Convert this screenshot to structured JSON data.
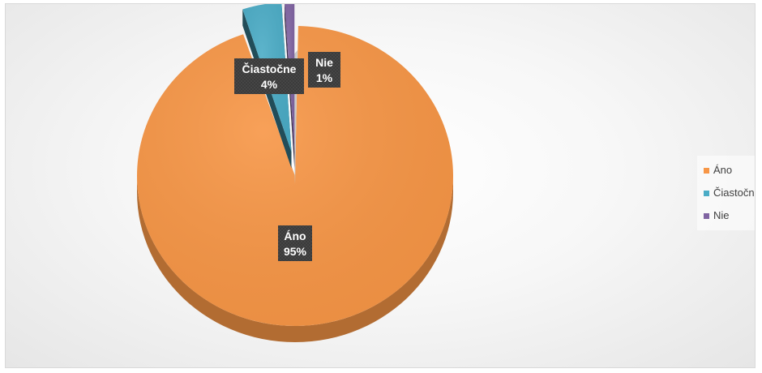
{
  "chart_data": {
    "type": "pie",
    "title": "",
    "categories": [
      "Áno",
      "Čiastočne",
      "Nie"
    ],
    "values": [
      95,
      4,
      1
    ],
    "value_format": "percent",
    "colors": {
      "Áno": "#F79646",
      "Čiastočne": "#4BACC6",
      "Nie": "#8064A2"
    },
    "data_labels": [
      {
        "category": "Áno",
        "text": "95%"
      },
      {
        "category": "Čiastočne",
        "text": "4%"
      },
      {
        "category": "Nie",
        "text": "1%"
      }
    ],
    "exploded": true,
    "three_d": true,
    "legend": {
      "position": "right",
      "entries": [
        "Áno",
        "Čiastočne",
        "Nie"
      ]
    },
    "label_box_color": "#3a3a3a"
  }
}
